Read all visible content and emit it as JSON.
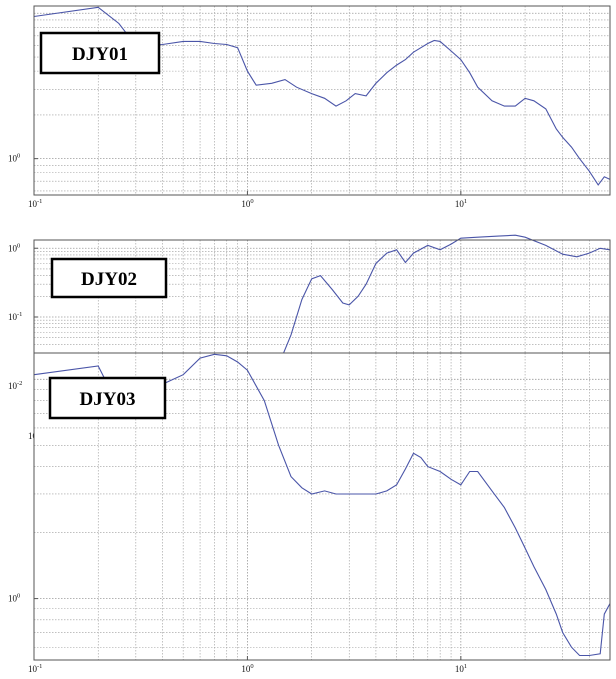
{
  "colors": {
    "line": "#4a55a8",
    "grid": "#9a9a9a",
    "frame": "#555555",
    "box": "#000000"
  },
  "chart_data": [
    {
      "type": "line",
      "title": "DJY01",
      "x_scale": "log",
      "y_scale": "log",
      "xlim": [
        0.1,
        50
      ],
      "x_ticks": [
        {
          "base": "10",
          "exp": "-1"
        },
        {
          "base": "10",
          "exp": "0"
        },
        {
          "base": "10",
          "exp": "1"
        }
      ],
      "y_ticks": [
        {
          "base": "10",
          "exp": "0"
        }
      ],
      "grid": true,
      "series": [
        {
          "x": [
            0.1,
            0.2,
            0.25,
            0.3,
            0.4,
            0.5,
            0.6,
            0.7,
            0.8,
            0.9,
            1.0,
            1.1,
            1.3,
            1.5,
            1.7,
            2.0,
            2.3,
            2.6,
            2.9,
            3.2,
            3.6,
            4.0,
            4.5,
            5.0,
            5.5,
            6.0,
            6.5,
            7.0,
            7.5,
            8.0,
            9.0,
            10,
            11,
            12,
            14,
            16,
            18,
            20,
            22,
            25,
            28,
            30,
            33,
            36,
            40,
            44,
            47,
            50
          ],
          "y": [
            9.5,
            11.0,
            8.5,
            6.0,
            6.1,
            6.4,
            6.4,
            6.2,
            6.1,
            5.8,
            4.0,
            3.2,
            3.3,
            3.5,
            3.1,
            2.8,
            2.6,
            2.3,
            2.5,
            2.8,
            2.7,
            3.3,
            3.9,
            4.4,
            4.8,
            5.4,
            5.8,
            6.2,
            6.5,
            6.4,
            5.5,
            4.8,
            3.9,
            3.1,
            2.5,
            2.3,
            2.3,
            2.6,
            2.5,
            2.2,
            1.6,
            1.4,
            1.2,
            1.0,
            0.82,
            0.66,
            0.75,
            0.72
          ]
        }
      ]
    },
    {
      "type": "line",
      "title": "DJY02",
      "x_scale": "log",
      "y_scale": "log",
      "xlim": [
        0.1,
        50
      ],
      "x_ticks": [
        {
          "base": "10",
          "exp": "-1"
        },
        {
          "base": "10",
          "exp": "0"
        },
        {
          "base": "10",
          "exp": "1"
        }
      ],
      "y_ticks": [
        {
          "base": "10",
          "exp": "0"
        },
        {
          "base": "10",
          "exp": "-1"
        },
        {
          "base": "10",
          "exp": "-2"
        }
      ],
      "grid": true,
      "series": [
        {
          "x": [
            0.1,
            0.2,
            0.3,
            0.4,
            0.5,
            0.6,
            0.7,
            0.8,
            0.9,
            1.0,
            1.2,
            1.4,
            1.6,
            1.8,
            2.0,
            2.2,
            2.5,
            2.8,
            3.0,
            3.3,
            3.6,
            4.0,
            4.5,
            5.0,
            5.5,
            6.0,
            7.0,
            8.0,
            9.0,
            10,
            12,
            15,
            18,
            20,
            25,
            30,
            35,
            40,
            45,
            50
          ],
          "y": [
            0.0028,
            0.018,
            0.011,
            0.0085,
            0.0075,
            0.0062,
            0.0056,
            0.0057,
            0.0062,
            0.0075,
            0.011,
            0.02,
            0.055,
            0.18,
            0.36,
            0.4,
            0.25,
            0.16,
            0.15,
            0.2,
            0.3,
            0.6,
            0.85,
            0.95,
            0.62,
            0.85,
            1.1,
            0.95,
            1.15,
            1.4,
            1.45,
            1.5,
            1.55,
            1.45,
            1.1,
            0.82,
            0.75,
            0.85,
            1.0,
            0.95
          ]
        }
      ]
    },
    {
      "type": "line",
      "title": "DJY03",
      "x_scale": "log",
      "y_scale": "log",
      "xlim": [
        0.1,
        50
      ],
      "x_ticks": [
        {
          "base": "10",
          "exp": "-1"
        },
        {
          "base": "10",
          "exp": "0"
        },
        {
          "base": "10",
          "exp": "1"
        }
      ],
      "y_ticks": [
        {
          "base": "10",
          "exp": "0"
        }
      ],
      "grid": true,
      "series": [
        {
          "x": [
            0.1,
            0.2,
            0.25,
            0.3,
            0.4,
            0.5,
            0.6,
            0.7,
            0.8,
            0.9,
            1.0,
            1.2,
            1.4,
            1.6,
            1.8,
            2.0,
            2.3,
            2.6,
            3.0,
            3.5,
            4.0,
            4.5,
            5.0,
            5.5,
            6.0,
            6.5,
            7.0,
            8.0,
            9.0,
            10,
            11,
            12,
            14,
            16,
            18,
            20,
            22,
            25,
            28,
            30,
            33,
            36,
            40,
            45,
            47,
            50
          ],
          "y": [
            10.5,
            11.5,
            7.5,
            8.0,
            9.5,
            10.5,
            12.5,
            13.0,
            12.8,
            12.0,
            11.0,
            8.0,
            5.0,
            3.6,
            3.2,
            3.0,
            3.1,
            3.0,
            3.0,
            3.0,
            3.0,
            3.1,
            3.3,
            3.9,
            4.6,
            4.4,
            4.0,
            3.8,
            3.5,
            3.3,
            3.8,
            3.8,
            3.1,
            2.6,
            2.1,
            1.7,
            1.4,
            1.1,
            0.85,
            0.7,
            0.6,
            0.55,
            0.55,
            0.56,
            0.85,
            0.95
          ]
        }
      ]
    }
  ]
}
